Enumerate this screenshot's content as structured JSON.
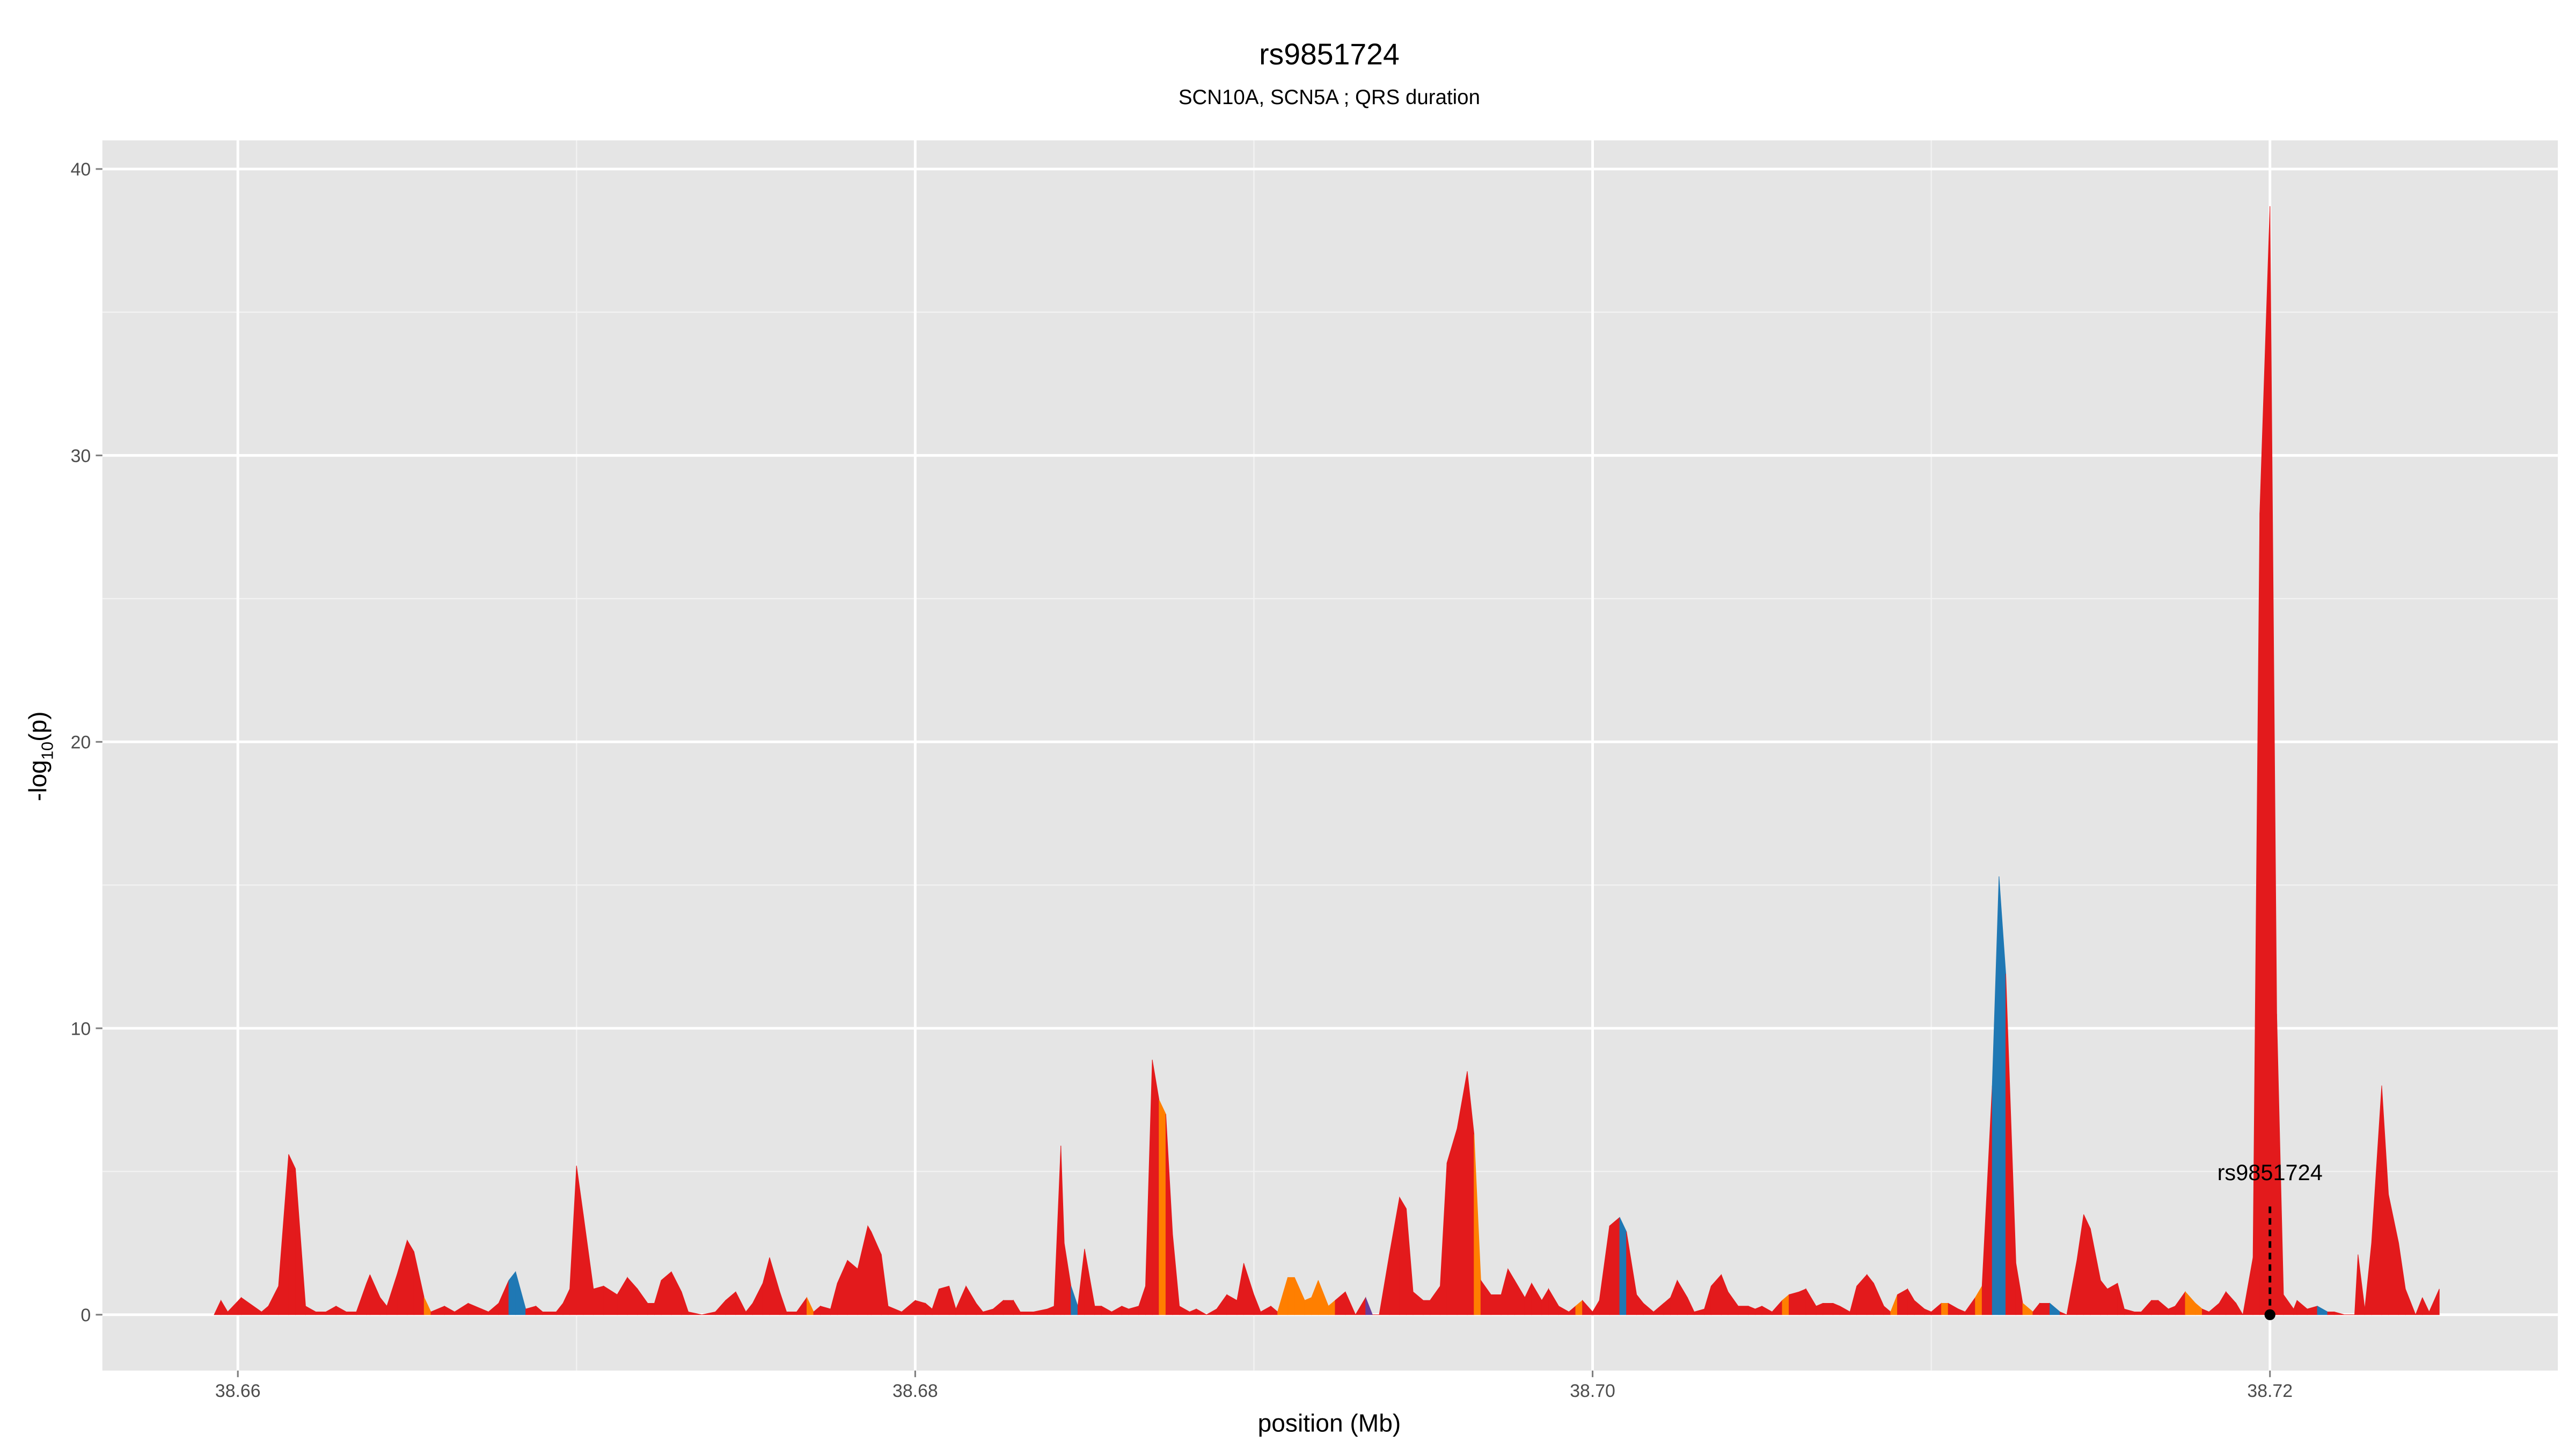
{
  "chart_data": {
    "type": "area",
    "title": "rs9851724",
    "subtitle": "SCN10A, SCN5A ; QRS duration",
    "xlabel": "position (Mb)",
    "ylabel": "-log10(p)",
    "ylabel_main": "-log",
    "ylabel_sub": "10",
    "ylabel_tail": "(p)",
    "xlim": [
      38.656,
      38.7285
    ],
    "ylim": [
      -1.95,
      41
    ],
    "x_ticks": [
      38.66,
      38.68,
      38.7,
      38.72
    ],
    "x_tick_labels": [
      "38.66",
      "38.68",
      "38.70",
      "38.72"
    ],
    "y_ticks": [
      0,
      10,
      20,
      30,
      40
    ],
    "y_tick_labels": [
      "0",
      "10",
      "20",
      "30",
      "40"
    ],
    "grid": true,
    "background": "#E5E5E5",
    "ld_colors": {
      "r": "#E31A1C",
      "o": "#FF7F00",
      "b": "#1F78B4",
      "p": "#6A3D9A"
    },
    "annotation": {
      "label": "rs9851724",
      "x": 38.72,
      "y": 0,
      "label_y": 4.7
    },
    "points": [
      [
        38.6593,
        0,
        "r"
      ],
      [
        38.6595,
        0.5,
        "r"
      ],
      [
        38.6597,
        0.1,
        "r"
      ],
      [
        38.6601,
        0.6,
        "r"
      ],
      [
        38.6607,
        0.1,
        "r"
      ],
      [
        38.6609,
        0.3,
        "r"
      ],
      [
        38.6612,
        1.0,
        "r"
      ],
      [
        38.6615,
        5.6,
        "r"
      ],
      [
        38.6617,
        5.1,
        "r"
      ],
      [
        38.662,
        0.3,
        "r"
      ],
      [
        38.6623,
        0.1,
        "r"
      ],
      [
        38.6626,
        0.1,
        "r"
      ],
      [
        38.6629,
        0.3,
        "r"
      ],
      [
        38.6632,
        0.1,
        "r"
      ],
      [
        38.6635,
        0.1,
        "r"
      ],
      [
        38.6638,
        1.1,
        "r"
      ],
      [
        38.6639,
        1.4,
        "r"
      ],
      [
        38.6642,
        0.6,
        "r"
      ],
      [
        38.6644,
        0.3,
        "r"
      ],
      [
        38.6647,
        1.4,
        "r"
      ],
      [
        38.665,
        2.6,
        "r"
      ],
      [
        38.6652,
        2.2,
        "r"
      ],
      [
        38.6655,
        0.6,
        "o"
      ],
      [
        38.6657,
        0.1,
        "r"
      ],
      [
        38.6661,
        0.3,
        "r"
      ],
      [
        38.6664,
        0.1,
        "r"
      ],
      [
        38.6668,
        0.4,
        "r"
      ],
      [
        38.6672,
        0.2,
        "r"
      ],
      [
        38.6674,
        0.1,
        "r"
      ],
      [
        38.6677,
        0.4,
        "r"
      ],
      [
        38.668,
        1.2,
        "b"
      ],
      [
        38.6682,
        1.5,
        "b"
      ],
      [
        38.6685,
        0.2,
        "r"
      ],
      [
        38.6688,
        0.3,
        "r"
      ],
      [
        38.669,
        0.1,
        "r"
      ],
      [
        38.6694,
        0.1,
        "r"
      ],
      [
        38.6696,
        0.4,
        "r"
      ],
      [
        38.6698,
        0.9,
        "r"
      ],
      [
        38.67,
        5.2,
        "r"
      ],
      [
        38.6702,
        3.5,
        "r"
      ],
      [
        38.6705,
        0.9,
        "r"
      ],
      [
        38.6708,
        1.0,
        "r"
      ],
      [
        38.6712,
        0.7,
        "r"
      ],
      [
        38.6715,
        1.3,
        "r"
      ],
      [
        38.6718,
        0.9,
        "r"
      ],
      [
        38.6721,
        0.4,
        "r"
      ],
      [
        38.6723,
        0.4,
        "r"
      ],
      [
        38.6725,
        1.2,
        "r"
      ],
      [
        38.6728,
        1.5,
        "r"
      ],
      [
        38.6731,
        0.8,
        "r"
      ],
      [
        38.6733,
        0.1,
        "r"
      ],
      [
        38.6737,
        0.0,
        "r"
      ],
      [
        38.6741,
        0.1,
        "r"
      ],
      [
        38.6744,
        0.5,
        "r"
      ],
      [
        38.6747,
        0.8,
        "r"
      ],
      [
        38.675,
        0.1,
        "r"
      ],
      [
        38.6752,
        0.4,
        "r"
      ],
      [
        38.6755,
        1.1,
        "r"
      ],
      [
        38.6757,
        2.0,
        "r"
      ],
      [
        38.676,
        0.8,
        "r"
      ],
      [
        38.6762,
        0.1,
        "r"
      ],
      [
        38.6765,
        0.1,
        "r"
      ],
      [
        38.6768,
        0.6,
        "o"
      ],
      [
        38.677,
        0.1,
        "r"
      ],
      [
        38.6772,
        0.3,
        "r"
      ],
      [
        38.6775,
        0.2,
        "r"
      ],
      [
        38.6777,
        1.1,
        "r"
      ],
      [
        38.678,
        1.9,
        "r"
      ],
      [
        38.6783,
        1.6,
        "r"
      ],
      [
        38.6786,
        3.1,
        "r"
      ],
      [
        38.6787,
        2.9,
        "r"
      ],
      [
        38.679,
        2.1,
        "r"
      ],
      [
        38.6792,
        0.3,
        "r"
      ],
      [
        38.6796,
        0.1,
        "r"
      ],
      [
        38.68,
        0.5,
        "r"
      ],
      [
        38.6803,
        0.4,
        "r"
      ],
      [
        38.6805,
        0.2,
        "r"
      ],
      [
        38.6807,
        0.9,
        "r"
      ],
      [
        38.681,
        1.0,
        "r"
      ],
      [
        38.6812,
        0.2,
        "r"
      ],
      [
        38.6815,
        1.0,
        "r"
      ],
      [
        38.6818,
        0.4,
        "r"
      ],
      [
        38.682,
        0.1,
        "r"
      ],
      [
        38.6823,
        0.2,
        "r"
      ],
      [
        38.6826,
        0.5,
        "r"
      ],
      [
        38.6829,
        0.5,
        "r"
      ],
      [
        38.6831,
        0.1,
        "r"
      ],
      [
        38.6835,
        0.1,
        "r"
      ],
      [
        38.6839,
        0.2,
        "r"
      ],
      [
        38.6841,
        0.3,
        "r"
      ],
      [
        38.6843,
        5.9,
        "r"
      ],
      [
        38.6844,
        2.5,
        "r"
      ],
      [
        38.6846,
        1.0,
        "b"
      ],
      [
        38.6848,
        0.3,
        "r"
      ],
      [
        38.685,
        2.3,
        "r"
      ],
      [
        38.6853,
        0.3,
        "r"
      ],
      [
        38.6855,
        0.3,
        "r"
      ],
      [
        38.6858,
        0.1,
        "r"
      ],
      [
        38.6861,
        0.3,
        "r"
      ],
      [
        38.6863,
        0.2,
        "r"
      ],
      [
        38.6866,
        0.3,
        "r"
      ],
      [
        38.6868,
        1.0,
        "r"
      ],
      [
        38.687,
        8.9,
        "r"
      ],
      [
        38.6872,
        7.5,
        "o"
      ],
      [
        38.6874,
        7.0,
        "r"
      ],
      [
        38.6876,
        2.8,
        "r"
      ],
      [
        38.6878,
        0.3,
        "r"
      ],
      [
        38.6881,
        0.1,
        "r"
      ],
      [
        38.6883,
        0.2,
        "r"
      ],
      [
        38.6886,
        0.0,
        "r"
      ],
      [
        38.6889,
        0.2,
        "r"
      ],
      [
        38.6892,
        0.7,
        "r"
      ],
      [
        38.6895,
        0.5,
        "r"
      ],
      [
        38.6897,
        1.8,
        "r"
      ],
      [
        38.69,
        0.7,
        "r"
      ],
      [
        38.6902,
        0.1,
        "r"
      ],
      [
        38.6905,
        0.3,
        "r"
      ],
      [
        38.6907,
        0.1,
        "o"
      ],
      [
        38.691,
        1.3,
        "o"
      ],
      [
        38.6912,
        1.3,
        "o"
      ],
      [
        38.6915,
        0.5,
        "o"
      ],
      [
        38.6917,
        0.6,
        "o"
      ],
      [
        38.6919,
        1.2,
        "o"
      ],
      [
        38.6922,
        0.3,
        "o"
      ],
      [
        38.6924,
        0.5,
        "r"
      ],
      [
        38.6927,
        0.8,
        "r"
      ],
      [
        38.693,
        0.0,
        "r"
      ],
      [
        38.6933,
        0.6,
        "p"
      ],
      [
        38.6935,
        0.0,
        "r"
      ],
      [
        38.6937,
        0.0,
        "r"
      ],
      [
        38.694,
        2.1,
        "r"
      ],
      [
        38.6943,
        4.1,
        "r"
      ],
      [
        38.6945,
        3.7,
        "r"
      ],
      [
        38.6947,
        0.8,
        "r"
      ],
      [
        38.695,
        0.5,
        "r"
      ],
      [
        38.6952,
        0.5,
        "r"
      ],
      [
        38.6955,
        1.0,
        "r"
      ],
      [
        38.6957,
        5.3,
        "r"
      ],
      [
        38.696,
        6.5,
        "r"
      ],
      [
        38.6963,
        8.5,
        "r"
      ],
      [
        38.6965,
        6.3,
        "o"
      ],
      [
        38.6967,
        1.2,
        "r"
      ],
      [
        38.697,
        0.7,
        "r"
      ],
      [
        38.6973,
        0.7,
        "r"
      ],
      [
        38.6975,
        1.6,
        "r"
      ],
      [
        38.6977,
        1.2,
        "r"
      ],
      [
        38.698,
        0.6,
        "r"
      ],
      [
        38.6982,
        1.1,
        "r"
      ],
      [
        38.6985,
        0.5,
        "r"
      ],
      [
        38.6987,
        0.9,
        "r"
      ],
      [
        38.699,
        0.3,
        "r"
      ],
      [
        38.6993,
        0.1,
        "r"
      ],
      [
        38.6995,
        0.3,
        "o"
      ],
      [
        38.6997,
        0.5,
        "r"
      ],
      [
        38.7,
        0.1,
        "r"
      ],
      [
        38.7002,
        0.5,
        "r"
      ],
      [
        38.7005,
        3.1,
        "r"
      ],
      [
        38.7008,
        3.4,
        "b"
      ],
      [
        38.701,
        2.9,
        "r"
      ],
      [
        38.7013,
        0.7,
        "r"
      ],
      [
        38.7015,
        0.4,
        "r"
      ],
      [
        38.7018,
        0.1,
        "r"
      ],
      [
        38.7021,
        0.4,
        "r"
      ],
      [
        38.7023,
        0.6,
        "r"
      ],
      [
        38.7025,
        1.2,
        "r"
      ],
      [
        38.7028,
        0.6,
        "r"
      ],
      [
        38.703,
        0.1,
        "r"
      ],
      [
        38.7033,
        0.2,
        "r"
      ],
      [
        38.7035,
        1.0,
        "r"
      ],
      [
        38.7038,
        1.4,
        "r"
      ],
      [
        38.704,
        0.8,
        "r"
      ],
      [
        38.7043,
        0.3,
        "r"
      ],
      [
        38.7046,
        0.3,
        "r"
      ],
      [
        38.7048,
        0.2,
        "r"
      ],
      [
        38.705,
        0.3,
        "r"
      ],
      [
        38.7053,
        0.1,
        "r"
      ],
      [
        38.7056,
        0.5,
        "o"
      ],
      [
        38.7058,
        0.7,
        "r"
      ],
      [
        38.7061,
        0.8,
        "r"
      ],
      [
        38.7063,
        0.9,
        "r"
      ],
      [
        38.7066,
        0.3,
        "r"
      ],
      [
        38.7068,
        0.4,
        "r"
      ],
      [
        38.7071,
        0.4,
        "r"
      ],
      [
        38.7073,
        0.3,
        "r"
      ],
      [
        38.7076,
        0.1,
        "r"
      ],
      [
        38.7078,
        1.0,
        "r"
      ],
      [
        38.7081,
        1.4,
        "r"
      ],
      [
        38.7083,
        1.1,
        "r"
      ],
      [
        38.7086,
        0.3,
        "r"
      ],
      [
        38.7088,
        0.1,
        "o"
      ],
      [
        38.709,
        0.7,
        "r"
      ],
      [
        38.7093,
        0.9,
        "r"
      ],
      [
        38.7095,
        0.5,
        "r"
      ],
      [
        38.7098,
        0.2,
        "r"
      ],
      [
        38.71,
        0.1,
        "r"
      ],
      [
        38.7103,
        0.4,
        "o"
      ],
      [
        38.7105,
        0.4,
        "r"
      ],
      [
        38.7108,
        0.2,
        "r"
      ],
      [
        38.711,
        0.1,
        "r"
      ],
      [
        38.7113,
        0.6,
        "o"
      ],
      [
        38.7115,
        1.0,
        "r"
      ],
      [
        38.7118,
        8.0,
        "b"
      ],
      [
        38.712,
        15.3,
        "b"
      ],
      [
        38.7122,
        11.9,
        "r"
      ],
      [
        38.7125,
        1.8,
        "r"
      ],
      [
        38.7127,
        0.4,
        "o"
      ],
      [
        38.713,
        0.1,
        "r"
      ],
      [
        38.7132,
        0.4,
        "r"
      ],
      [
        38.7135,
        0.4,
        "b"
      ],
      [
        38.7138,
        0.1,
        "r"
      ],
      [
        38.714,
        0.0,
        "r"
      ],
      [
        38.7143,
        1.9,
        "r"
      ],
      [
        38.7145,
        3.5,
        "r"
      ],
      [
        38.7147,
        3.0,
        "r"
      ],
      [
        38.715,
        1.2,
        "r"
      ],
      [
        38.7152,
        0.9,
        "r"
      ],
      [
        38.7155,
        1.1,
        "r"
      ],
      [
        38.7157,
        0.2,
        "r"
      ],
      [
        38.716,
        0.1,
        "r"
      ],
      [
        38.7162,
        0.1,
        "r"
      ],
      [
        38.7165,
        0.5,
        "r"
      ],
      [
        38.7167,
        0.5,
        "r"
      ],
      [
        38.717,
        0.2,
        "r"
      ],
      [
        38.7172,
        0.3,
        "r"
      ],
      [
        38.7175,
        0.8,
        "o"
      ],
      [
        38.7178,
        0.4,
        "o"
      ],
      [
        38.718,
        0.2,
        "r"
      ],
      [
        38.7182,
        0.1,
        "r"
      ],
      [
        38.7185,
        0.4,
        "r"
      ],
      [
        38.7187,
        0.8,
        "r"
      ],
      [
        38.719,
        0.4,
        "r"
      ],
      [
        38.7192,
        0.0,
        "r"
      ],
      [
        38.7195,
        2.0,
        "r"
      ],
      [
        38.7197,
        28.0,
        "r"
      ],
      [
        38.72,
        38.7,
        "r"
      ],
      [
        38.7202,
        10.5,
        "r"
      ],
      [
        38.7204,
        0.7,
        "r"
      ],
      [
        38.7207,
        0.2,
        "r"
      ],
      [
        38.7208,
        0.5,
        "r"
      ],
      [
        38.7211,
        0.2,
        "r"
      ],
      [
        38.7214,
        0.3,
        "b"
      ],
      [
        38.7217,
        0.1,
        "r"
      ],
      [
        38.7219,
        0.1,
        "r"
      ],
      [
        38.7222,
        0.0,
        "r"
      ],
      [
        38.7225,
        0.0,
        "r"
      ],
      [
        38.7226,
        2.1,
        "r"
      ],
      [
        38.7228,
        0.2,
        "r"
      ],
      [
        38.723,
        2.5,
        "r"
      ],
      [
        38.7233,
        8.0,
        "r"
      ],
      [
        38.7235,
        4.2,
        "r"
      ],
      [
        38.7238,
        2.5,
        "r"
      ],
      [
        38.724,
        0.9,
        "r"
      ],
      [
        38.7243,
        0.0,
        "r"
      ],
      [
        38.7245,
        0.6,
        "r"
      ],
      [
        38.7247,
        0.1,
        "r"
      ],
      [
        38.725,
        0.9,
        "r"
      ]
    ]
  }
}
